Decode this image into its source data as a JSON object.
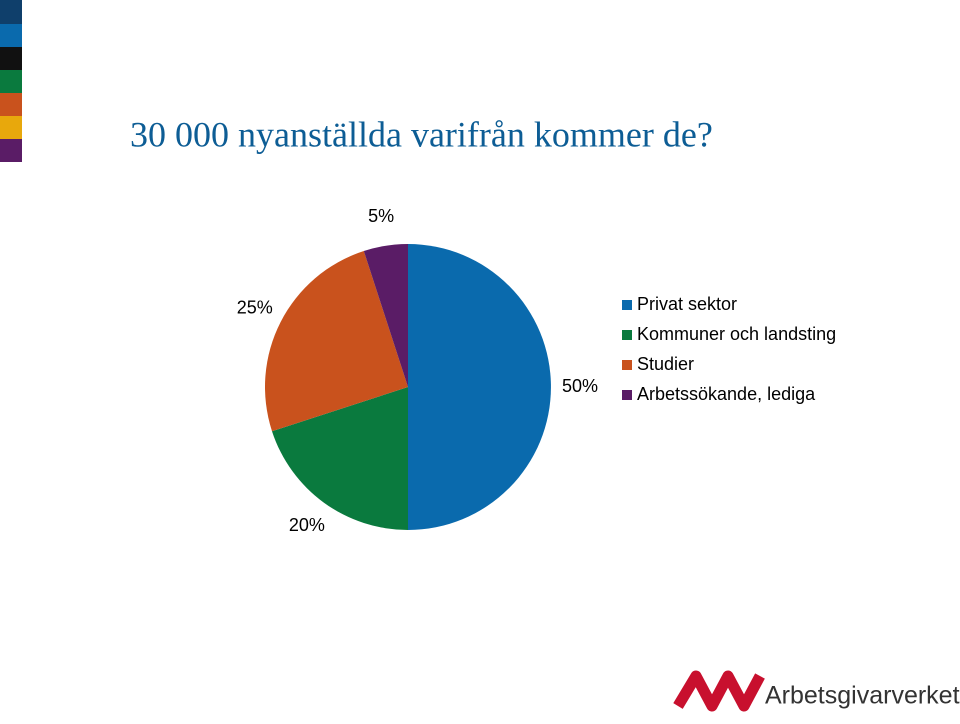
{
  "chart_data": {
    "type": "pie",
    "title": "30 000 nyanställda varifrån kommer de?",
    "categories": [
      "Privat sektor",
      "Kommuner och landsting",
      "Studier",
      "Arbetssökande, lediga"
    ],
    "values": [
      50,
      20,
      25,
      5
    ],
    "value_labels": [
      "50%",
      "20%",
      "25%",
      "5%"
    ],
    "colors": [
      "#0a6aad",
      "#0a7a3e",
      "#c9521d",
      "#5a1c66"
    ],
    "legend": "right"
  },
  "footer": {
    "logo": "Arbetsgivarverket"
  }
}
